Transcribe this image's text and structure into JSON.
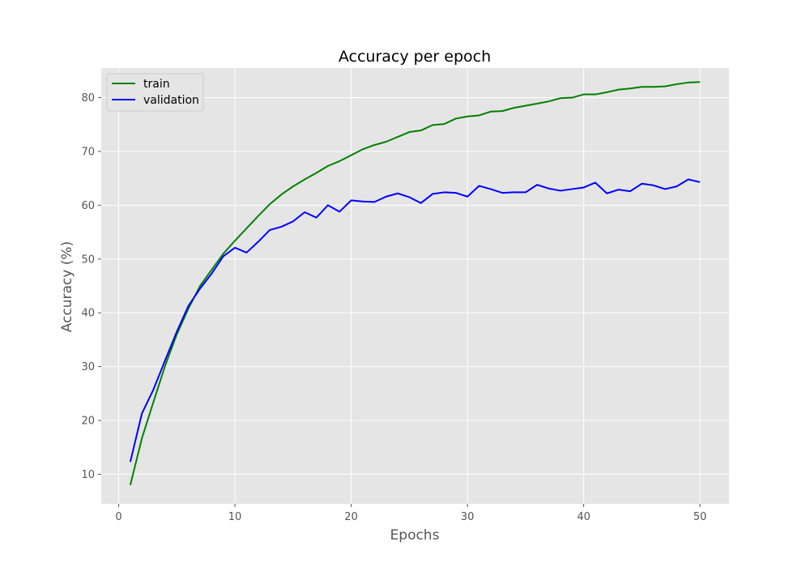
{
  "chart_data": {
    "type": "line",
    "title": "Accuracy per epoch",
    "xlabel": "Epochs",
    "ylabel": "Accuracy (%)",
    "xlim": [
      -1.5,
      52.5
    ],
    "ylim": [
      4.5,
      85.5
    ],
    "xticks": [
      0,
      10,
      20,
      30,
      40,
      50
    ],
    "yticks": [
      10,
      20,
      30,
      40,
      50,
      60,
      70,
      80
    ],
    "grid": true,
    "legend_position": "top-left",
    "background_color": "#e5e5e5",
    "grid_color": "#ffffff",
    "x": [
      1,
      2,
      3,
      4,
      5,
      6,
      7,
      8,
      9,
      10,
      11,
      12,
      13,
      14,
      15,
      16,
      17,
      18,
      19,
      20,
      21,
      22,
      23,
      24,
      25,
      26,
      27,
      28,
      29,
      30,
      31,
      32,
      33,
      34,
      35,
      36,
      37,
      38,
      39,
      40,
      41,
      42,
      43,
      44,
      45,
      46,
      47,
      48,
      49,
      50
    ],
    "series": [
      {
        "name": "train",
        "color": "#008000",
        "values": [
          8.0,
          16.7,
          23.5,
          30.2,
          36.0,
          40.8,
          45.0,
          48.0,
          51.0,
          53.4,
          55.7,
          58.0,
          60.2,
          62.0,
          63.5,
          64.8,
          66.0,
          67.3,
          68.2,
          69.3,
          70.4,
          71.2,
          71.8,
          72.7,
          73.6,
          73.9,
          74.9,
          75.1,
          76.1,
          76.5,
          76.7,
          77.4,
          77.5,
          78.1,
          78.5,
          78.9,
          79.3,
          79.9,
          80.0,
          80.6,
          80.6,
          81.0,
          81.5,
          81.7,
          82.0,
          82.0,
          82.1,
          82.5,
          82.8,
          82.9
        ]
      },
      {
        "name": "validation",
        "color": "#0000ff",
        "values": [
          12.3,
          21.3,
          25.8,
          31.2,
          36.5,
          41.3,
          44.5,
          47.3,
          50.5,
          52.1,
          51.2,
          53.2,
          55.4,
          56.0,
          57.0,
          58.7,
          57.7,
          60.0,
          58.8,
          60.9,
          60.7,
          60.6,
          61.6,
          62.2,
          61.5,
          60.4,
          62.1,
          62.4,
          62.3,
          61.6,
          63.6,
          63.0,
          62.3,
          62.4,
          62.4,
          63.8,
          63.1,
          62.7,
          63.0,
          63.3,
          64.2,
          62.2,
          62.9,
          62.6,
          64.0,
          63.7,
          63.0,
          63.5,
          64.8,
          64.3
        ]
      }
    ]
  }
}
